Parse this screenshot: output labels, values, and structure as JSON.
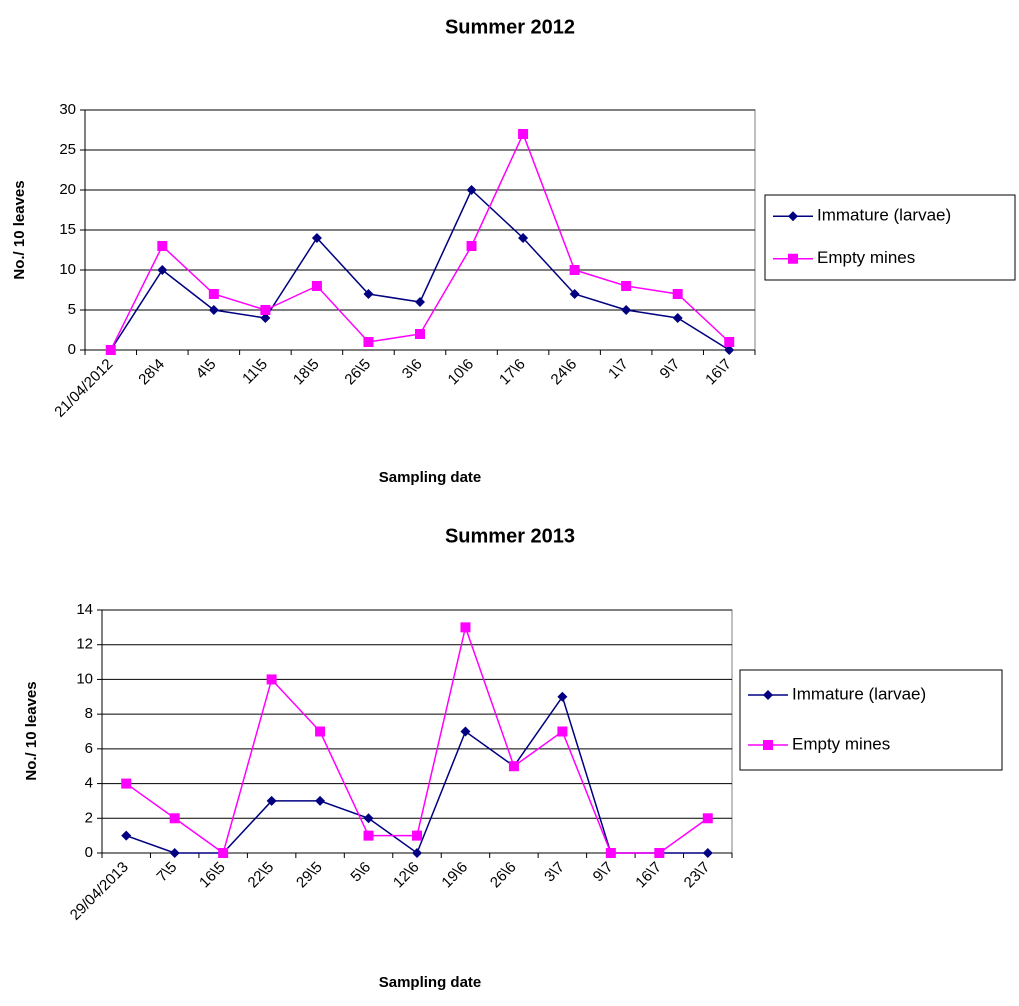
{
  "chart_data": [
    {
      "type": "line",
      "title": "Summer 2012",
      "x_label": "Sampling date",
      "y_label": "No./ 10 leaves",
      "categories": [
        "21/04/2012",
        "28\\4",
        "4\\5",
        "11\\5",
        "18\\5",
        "26\\5",
        "3\\6",
        "10\\6",
        "17\\6",
        "24\\6",
        "1\\7",
        "9\\7",
        "16\\7"
      ],
      "series": [
        {
          "name": "Immature (larvae)",
          "color": "#000080",
          "marker": "diamond",
          "values": [
            0,
            10,
            5,
            4,
            14,
            7,
            6,
            20,
            14,
            7,
            5,
            4,
            0
          ]
        },
        {
          "name": "Empty mines",
          "color": "#ff00ff",
          "marker": "square",
          "values": [
            0,
            13,
            7,
            5,
            8,
            1,
            2,
            13,
            27,
            10,
            8,
            7,
            1
          ]
        }
      ],
      "ylim": [
        0,
        30
      ],
      "yticks": [
        0,
        5,
        10,
        15,
        20,
        25,
        30
      ],
      "grid": true,
      "legend": "right"
    },
    {
      "type": "line",
      "title": "Summer 2013",
      "x_label": "Sampling date",
      "y_label": "No./ 10 leaves",
      "categories": [
        "29/04/2013",
        "7\\5",
        "16\\5",
        "22\\5",
        "29\\5",
        "5\\6",
        "12\\6",
        "19\\6",
        "26\\6",
        "3\\7",
        "9\\7",
        "16\\7",
        "23\\7"
      ],
      "series": [
        {
          "name": "Immature (larvae)",
          "color": "#000080",
          "marker": "diamond",
          "values": [
            1,
            0,
            0,
            3,
            3,
            2,
            0,
            7,
            5,
            9,
            0,
            0,
            0
          ]
        },
        {
          "name": "Empty mines",
          "color": "#ff00ff",
          "marker": "square",
          "values": [
            4,
            2,
            0,
            10,
            7,
            1,
            1,
            13,
            5,
            7,
            0,
            0,
            2
          ]
        }
      ],
      "ylim": [
        0,
        14
      ],
      "yticks": [
        0,
        2,
        4,
        6,
        8,
        10,
        12,
        14
      ],
      "grid": true,
      "legend": "right"
    }
  ]
}
